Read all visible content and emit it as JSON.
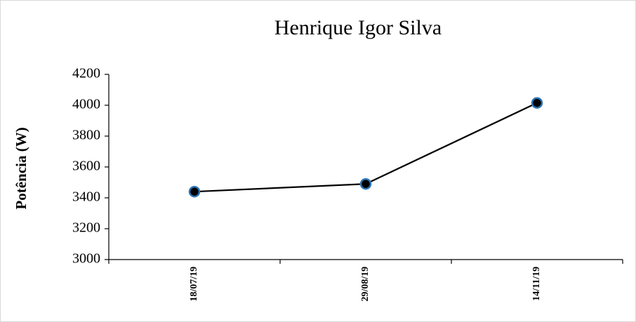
{
  "chart_data": {
    "type": "line",
    "title": "Henrique Igor Silva",
    "y_label": "Potência (W)",
    "categories": [
      "18/07/19",
      "29/08/19",
      "14/11/19"
    ],
    "series": [
      {
        "name": "Potência",
        "color": "#000000",
        "marker_edge": "#2e75b6",
        "values": [
          3440,
          3490,
          4015
        ]
      }
    ],
    "ylim": [
      3000,
      4200
    ],
    "yticks": [
      3000,
      3200,
      3400,
      3600,
      3800,
      4000,
      4200
    ],
    "grid": false
  }
}
